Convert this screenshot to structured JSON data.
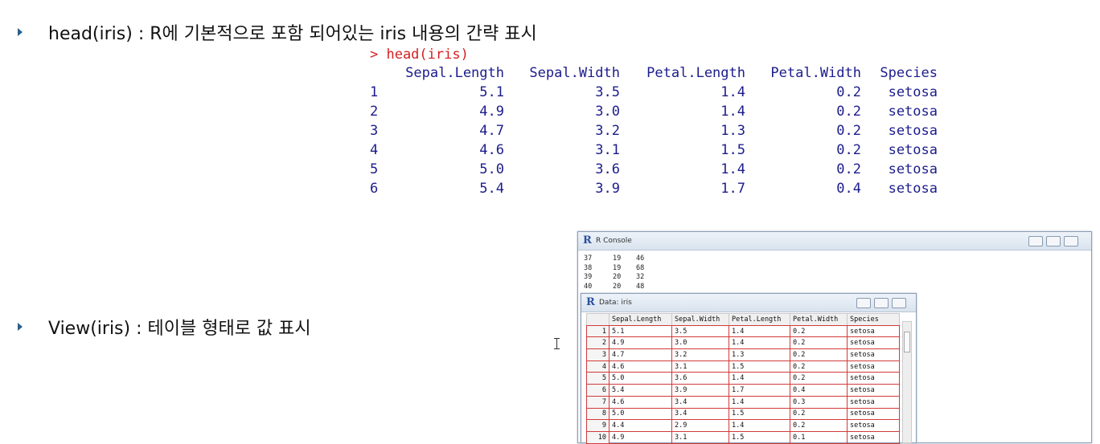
{
  "bullets": [
    {
      "text": "head(iris) : R에 기본적으로 포함 되어있는 iris 내용의 간략 표시"
    },
    {
      "text": "View(iris) : 테이블 형태로 값 표시"
    }
  ],
  "console_output": {
    "prompt": "> head(iris)",
    "header": [
      "Sepal.Length",
      "Sepal.Width",
      "Petal.Length",
      "Petal.Width",
      "Species"
    ],
    "rows": [
      [
        "1",
        "5.1",
        "3.5",
        "1.4",
        "0.2",
        "setosa"
      ],
      [
        "2",
        "4.9",
        "3.0",
        "1.4",
        "0.2",
        "setosa"
      ],
      [
        "3",
        "4.7",
        "3.2",
        "1.3",
        "0.2",
        "setosa"
      ],
      [
        "4",
        "4.6",
        "3.1",
        "1.5",
        "0.2",
        "setosa"
      ],
      [
        "5",
        "5.0",
        "3.6",
        "1.4",
        "0.2",
        "setosa"
      ],
      [
        "6",
        "5.4",
        "3.9",
        "1.7",
        "0.4",
        "setosa"
      ]
    ]
  },
  "r_console": {
    "title": "R Console",
    "lines": [
      [
        "37",
        "19",
        "46"
      ],
      [
        "38",
        "19",
        "68"
      ],
      [
        "39",
        "20",
        "32"
      ],
      [
        "40",
        "20",
        "48"
      ]
    ]
  },
  "data_viewer": {
    "title": "Data: iris",
    "header": [
      "Sepal.Length",
      "Sepal.Width",
      "Petal.Length",
      "Petal.Width",
      "Species"
    ],
    "rows": [
      [
        "1",
        "5.1",
        "3.5",
        "1.4",
        "0.2",
        "setosa"
      ],
      [
        "2",
        "4.9",
        "3.0",
        "1.4",
        "0.2",
        "setosa"
      ],
      [
        "3",
        "4.7",
        "3.2",
        "1.3",
        "0.2",
        "setosa"
      ],
      [
        "4",
        "4.6",
        "3.1",
        "1.5",
        "0.2",
        "setosa"
      ],
      [
        "5",
        "5.0",
        "3.6",
        "1.4",
        "0.2",
        "setosa"
      ],
      [
        "6",
        "5.4",
        "3.9",
        "1.7",
        "0.4",
        "setosa"
      ],
      [
        "7",
        "4.6",
        "3.4",
        "1.4",
        "0.3",
        "setosa"
      ],
      [
        "8",
        "5.0",
        "3.4",
        "1.5",
        "0.2",
        "setosa"
      ],
      [
        "9",
        "4.4",
        "2.9",
        "1.4",
        "0.2",
        "setosa"
      ],
      [
        "10",
        "4.9",
        "3.1",
        "1.5",
        "0.1",
        "setosa"
      ]
    ]
  }
}
